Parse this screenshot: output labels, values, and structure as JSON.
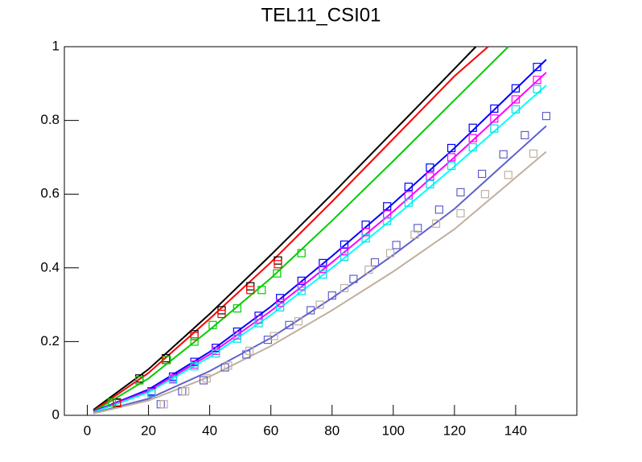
{
  "chart_data": {
    "type": "line",
    "title": "TEL11_CSI01",
    "xlim": [
      -7.5,
      160
    ],
    "ylim": [
      0,
      1
    ],
    "xticks": [
      0,
      20,
      40,
      60,
      80,
      100,
      120,
      140
    ],
    "yticks": [
      0,
      0.2,
      0.4,
      0.6,
      0.8,
      1
    ],
    "series": [
      {
        "style": "line",
        "color": "#000000",
        "x": [
          2,
          20,
          40,
          60,
          80,
          100,
          120,
          127
        ],
        "values": [
          0.015,
          0.125,
          0.275,
          0.435,
          0.6,
          0.77,
          0.94,
          1.0
        ]
      },
      {
        "style": "line",
        "color": "#ff0000",
        "x": [
          2,
          20,
          40,
          60,
          80,
          100,
          120,
          131
        ],
        "values": [
          0.012,
          0.115,
          0.262,
          0.415,
          0.58,
          0.75,
          0.92,
          1.0
        ]
      },
      {
        "style": "line",
        "color": "#00cc00",
        "x": [
          2,
          20,
          40,
          60,
          80,
          100,
          120,
          137.6
        ],
        "values": [
          0.01,
          0.1,
          0.232,
          0.372,
          0.528,
          0.69,
          0.855,
          1.0
        ]
      },
      {
        "style": "line",
        "color": "#0000ff",
        "x": [
          2,
          20,
          40,
          60,
          80,
          100,
          120,
          150
        ],
        "values": [
          0.01,
          0.07,
          0.172,
          0.295,
          0.432,
          0.575,
          0.725,
          0.965
        ]
      },
      {
        "style": "line",
        "color": "#ff00ff",
        "x": [
          2,
          20,
          40,
          60,
          80,
          100,
          120,
          150
        ],
        "values": [
          0.009,
          0.066,
          0.165,
          0.283,
          0.415,
          0.553,
          0.7,
          0.93
        ]
      },
      {
        "style": "line",
        "color": "#00ffff",
        "x": [
          2,
          20,
          40,
          60,
          80,
          100,
          120,
          150
        ],
        "values": [
          0.008,
          0.062,
          0.158,
          0.272,
          0.4,
          0.535,
          0.675,
          0.895
        ]
      },
      {
        "style": "line",
        "color": "#6060cc",
        "x": [
          2,
          20,
          40,
          60,
          80,
          100,
          120,
          150
        ],
        "values": [
          0.006,
          0.045,
          0.12,
          0.21,
          0.318,
          0.435,
          0.56,
          0.785
        ]
      },
      {
        "style": "line",
        "color": "#c0b0a0",
        "x": [
          2,
          20,
          40,
          60,
          80,
          100,
          120,
          150
        ],
        "values": [
          0.005,
          0.04,
          0.105,
          0.188,
          0.285,
          0.39,
          0.505,
          0.715
        ]
      },
      {
        "style": "markers",
        "color": "#000000",
        "x": [
          9.7,
          17,
          25.7,
          35,
          43.9,
          53.3,
          62.3
        ],
        "values": [
          0.035,
          0.1,
          0.155,
          0.22,
          0.285,
          0.35,
          0.42
        ]
      },
      {
        "style": "markers",
        "color": "#ff0000",
        "x": [
          9.7,
          17,
          25.7,
          35,
          43.9,
          53.3,
          62.3
        ],
        "values": [
          0.033,
          0.095,
          0.15,
          0.215,
          0.275,
          0.34,
          0.41
        ]
      },
      {
        "style": "markers",
        "color": "#00cc00",
        "x": [
          8,
          17,
          26,
          35,
          41,
          49,
          57,
          62,
          70
        ],
        "values": [
          0.035,
          0.095,
          0.15,
          0.2,
          0.245,
          0.29,
          0.34,
          0.385,
          0.44
        ]
      },
      {
        "style": "markers",
        "color": "#0000ff",
        "x": [
          21,
          28,
          35,
          42,
          49,
          56,
          63,
          70,
          77,
          84,
          91,
          98,
          105,
          112,
          119,
          126,
          133,
          140,
          147
        ],
        "values": [
          0.065,
          0.105,
          0.145,
          0.183,
          0.227,
          0.27,
          0.318,
          0.365,
          0.413,
          0.463,
          0.517,
          0.567,
          0.62,
          0.672,
          0.725,
          0.78,
          0.832,
          0.887,
          0.945
        ]
      },
      {
        "style": "markers",
        "color": "#ff00ff",
        "x": [
          21,
          28,
          35,
          42,
          49,
          56,
          63,
          70,
          77,
          84,
          91,
          98,
          105,
          112,
          119,
          126,
          133,
          140,
          147
        ],
        "values": [
          0.062,
          0.1,
          0.138,
          0.175,
          0.217,
          0.26,
          0.305,
          0.35,
          0.397,
          0.445,
          0.497,
          0.545,
          0.597,
          0.648,
          0.7,
          0.752,
          0.805,
          0.857,
          0.91
        ]
      },
      {
        "style": "markers",
        "color": "#00e0e0",
        "x": [
          21,
          28,
          35,
          42,
          49,
          56,
          63,
          70,
          77,
          84,
          91,
          98,
          105,
          112,
          119,
          126,
          133,
          140,
          147
        ],
        "values": [
          0.06,
          0.097,
          0.133,
          0.168,
          0.208,
          0.25,
          0.293,
          0.337,
          0.382,
          0.43,
          0.48,
          0.527,
          0.577,
          0.627,
          0.677,
          0.727,
          0.778,
          0.83,
          0.885
        ]
      },
      {
        "style": "markers",
        "color": "#6060cc",
        "x": [
          24,
          31,
          38,
          45,
          52,
          59,
          66,
          73,
          80,
          87,
          94,
          101,
          108,
          115,
          122,
          129,
          136,
          143,
          150
        ],
        "values": [
          0.03,
          0.065,
          0.095,
          0.13,
          0.165,
          0.205,
          0.245,
          0.285,
          0.325,
          0.37,
          0.415,
          0.462,
          0.508,
          0.558,
          0.605,
          0.655,
          0.708,
          0.76,
          0.812
        ]
      },
      {
        "style": "markers",
        "color": "#c0b0a0",
        "x": [
          25,
          32,
          39,
          46,
          53,
          61,
          69,
          76,
          84,
          92,
          99,
          107,
          114,
          122,
          130,
          137.6,
          145.8
        ],
        "values": [
          0.03,
          0.065,
          0.1,
          0.135,
          0.175,
          0.215,
          0.255,
          0.3,
          0.345,
          0.395,
          0.44,
          0.49,
          0.52,
          0.548,
          0.6,
          0.652,
          0.71
        ]
      }
    ]
  }
}
